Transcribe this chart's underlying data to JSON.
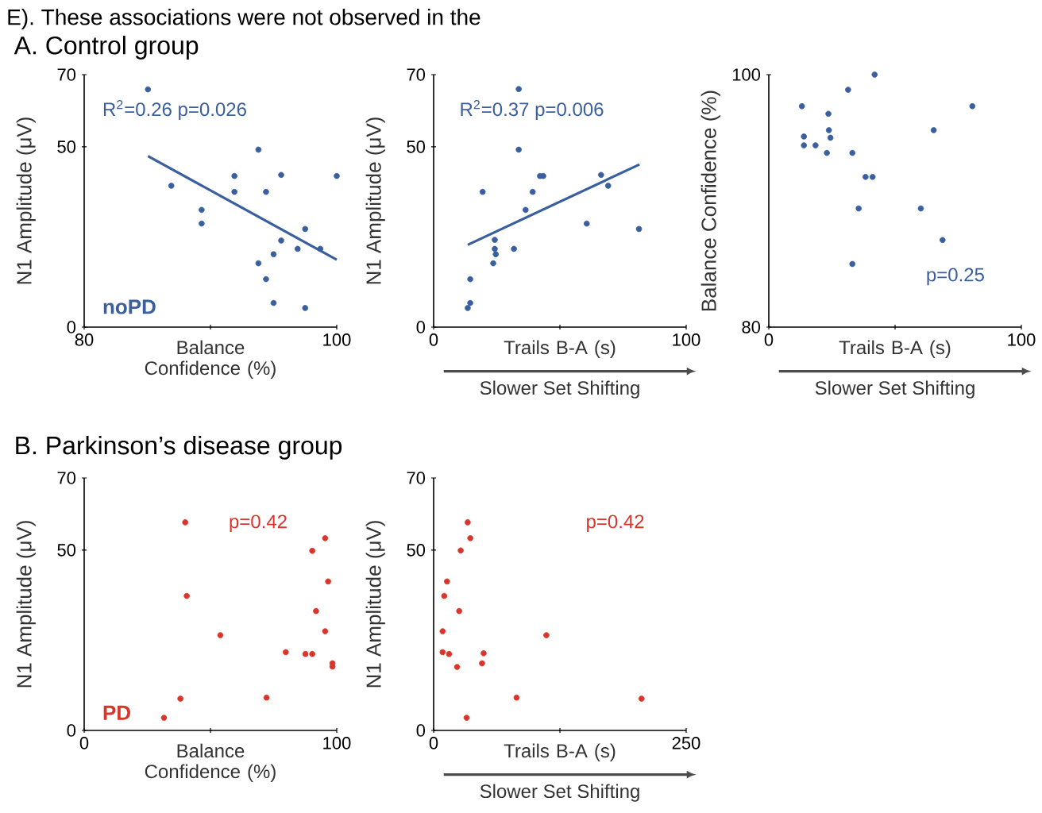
{
  "chart_data": [
    {
      "type": "scatter",
      "title": "A. Control group",
      "xlabel": "Balance Confidence (%)",
      "ylabel": "N1 Amplitude (μV)",
      "xlim": [
        80,
        100
      ],
      "xticks": [
        80,
        {
          "value": 90,
          "label": null
        },
        100
      ],
      "ylim": [
        0,
        70
      ],
      "yticks": [
        0,
        50,
        70
      ],
      "annotations": [
        "R$^{2}$=0.26 p=0.026",
        "noPD",
        "E). These associations were not observed in the"
      ],
      "series": [
        {
          "color": "#3a5f9e",
          "x": [
            85.05,
            86.9,
            89.3,
            89.3,
            91.9,
            91.9,
            93.8,
            93.8,
            94.4,
            94.4,
            95.0,
            95.0,
            95.6,
            95.6,
            96.9,
            97.5,
            97.5,
            98.7,
            100
          ],
          "values": [
            65.9,
            39.2,
            32.5,
            28.7,
            41.9,
            37.5,
            49.2,
            17.7,
            37.5,
            13.3,
            20.2,
            6.7,
            42.2,
            24.0,
            21.7,
            27.2,
            5.3,
            21.7,
            41.9
          ]
        },
        {
          "type": "line",
          "color": "#3a5f9e",
          "x": [
            85.05,
            100
          ],
          "values": [
            47.4,
            18.7
          ]
        }
      ]
    },
    {
      "type": "scatter",
      "xlabel": "Trails B-A (s)",
      "ylabel": "N1 Amplitude (μV)",
      "xlim": [
        0,
        100
      ],
      "xticks": [
        0,
        {
          "value": 50,
          "label": null
        },
        100
      ],
      "ylim": [
        0,
        70
      ],
      "yticks": [
        0,
        50,
        70
      ],
      "annotations": [
        "R$^{2}$=0.37 p=0.006",
        "Slower Set Shifting"
      ],
      "series": [
        {
          "color": "#3a5f9e",
          "x": [
            33.7,
            33.7,
            19.4,
            42.1,
            43.4,
            39.2,
            36.4,
            60.6,
            66.3,
            69.1,
            81.3,
            24.2,
            24.2,
            24.6,
            23.6,
            31.8,
            14.5,
            14.5,
            13.5
          ],
          "values": [
            66.0,
            49.2,
            37.5,
            41.9,
            41.9,
            37.5,
            32.5,
            28.7,
            42.2,
            39.2,
            27.2,
            24.2,
            21.7,
            20.2,
            17.7,
            21.7,
            13.3,
            6.7,
            5.3
          ]
        },
        {
          "type": "line",
          "color": "#3a5f9e",
          "x": [
            13.5,
            81.5
          ],
          "values": [
            22.8,
            45.1
          ]
        }
      ]
    },
    {
      "type": "scatter",
      "xlabel": "Trails B-A (s)",
      "ylabel": "Balance Confidence (%)",
      "xlim": [
        0,
        100
      ],
      "xticks": [
        0,
        {
          "value": 50,
          "label": null
        },
        100
      ],
      "ylim": [
        80,
        100
      ],
      "yticks": [
        80,
        100
      ],
      "annotations": [
        "p=0.25",
        "Slower Set Shifting"
      ],
      "series": [
        {
          "color": "#3a5f9e",
          "x": [
            13.1,
            23.6,
            13.9,
            13.9,
            18.5,
            23.8,
            24.4,
            23.0,
            31.4,
            41.9,
            33.1,
            38.3,
            41.1,
            35.6,
            33.1,
            60.2,
            65.3,
            68.8,
            80.6
          ],
          "values": [
            97.5,
            96.9,
            95.1,
            94.4,
            94.4,
            95.6,
            95.0,
            93.8,
            98.8,
            100,
            93.8,
            91.9,
            91.9,
            89.4,
            85.0,
            89.4,
            95.6,
            86.9,
            97.5
          ]
        }
      ]
    },
    {
      "type": "scatter",
      "title": "B. Parkinson’s disease group",
      "xlabel": "Balance Confidence (%)",
      "ylabel": "N1 Amplitude (μV)",
      "xlim": [
        0,
        100
      ],
      "xticks": [
        0,
        {
          "value": 50,
          "label": null
        },
        100
      ],
      "ylim": [
        0,
        70
      ],
      "yticks": [
        0,
        50,
        70
      ],
      "annotations": [
        "p=0.42",
        "PD"
      ],
      "series": [
        {
          "color": "#d9362b",
          "x": [
            40.0,
            40.6,
            53.9,
            38.1,
            31.6,
            72.2,
            79.8,
            87.6,
            90.3,
            90.3,
            95.4,
            96.6,
            91.8,
            95.4,
            98.3,
            98.3
          ],
          "values": [
            57.7,
            37.3,
            26.4,
            8.8,
            3.5,
            9.1,
            21.7,
            21.2,
            21.2,
            49.8,
            53.3,
            41.3,
            33.1,
            27.5,
            18.6,
            17.7
          ]
        }
      ]
    },
    {
      "type": "scatter",
      "xlabel": "Trails B-A (s)",
      "ylabel": "N1 Amplitude (μV)",
      "xlim": [
        0,
        250
      ],
      "xticks": [
        0,
        {
          "value": 125,
          "label": null
        },
        250
      ],
      "ylim": [
        0,
        70
      ],
      "yticks": [
        0,
        50,
        70
      ],
      "annotations": [
        "p=0.42",
        "Slower Set Shifting"
      ],
      "series": [
        {
          "color": "#d9362b",
          "x": [
            33.7,
            36.3,
            26.8,
            13.2,
            10.5,
            25.3,
            8.9,
            111.6,
            8.9,
            15.3,
            49.5,
            47.9,
            23.2,
            82.1,
            205.8,
            32.6
          ],
          "values": [
            57.7,
            53.3,
            49.9,
            41.3,
            37.3,
            33.1,
            27.5,
            26.4,
            21.7,
            21.2,
            21.4,
            18.6,
            17.6,
            9.1,
            8.8,
            3.5
          ]
        }
      ]
    }
  ]
}
